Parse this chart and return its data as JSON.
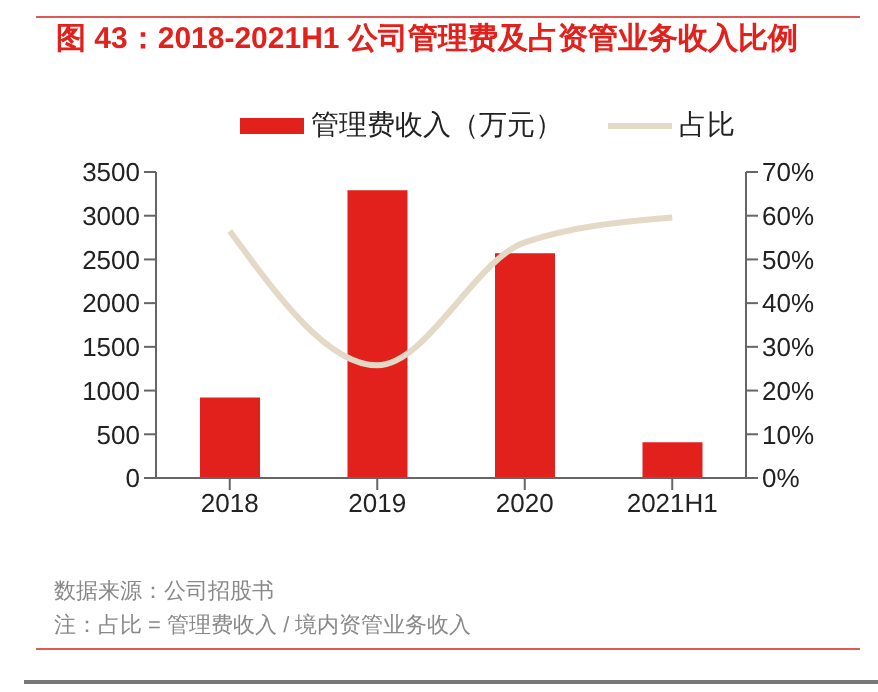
{
  "chart_data": {
    "type": "bar",
    "title": "图 43：2018-2021H1 公司管理费及占资管业务收入比例",
    "categories": [
      "2018",
      "2019",
      "2020",
      "2021H1"
    ],
    "series": [
      {
        "name": "管理费收入（万元）",
        "color": "#e2211c",
        "values": [
          920,
          3290,
          2570,
          410
        ]
      },
      {
        "name": "占比",
        "type": "line",
        "axis": "y2",
        "color": "#e3d9c6",
        "values": [
          56.5,
          25.8,
          53.9,
          59.6
        ]
      }
    ],
    "ylim": [
      0,
      3500
    ],
    "yticks": [
      0,
      500,
      1000,
      1500,
      2000,
      2500,
      3000,
      3500
    ],
    "y2lim": [
      0,
      70
    ],
    "y2ticks": [
      {
        "value": 0,
        "label": "0%"
      },
      {
        "value": 10,
        "label": "10%"
      },
      {
        "value": 20,
        "label": "20%"
      },
      {
        "value": 30,
        "label": "30%"
      },
      {
        "value": 40,
        "label": "40%"
      },
      {
        "value": 50,
        "label": "50%"
      },
      {
        "value": 60,
        "label": "60%"
      },
      {
        "value": 70,
        "label": "70%"
      }
    ],
    "grid": false,
    "legend": "top",
    "marker": "none",
    "annotations": [
      "数据来源：公司招股书",
      "注：占比 = 管理费收入 / 境内资管业务收入"
    ]
  }
}
